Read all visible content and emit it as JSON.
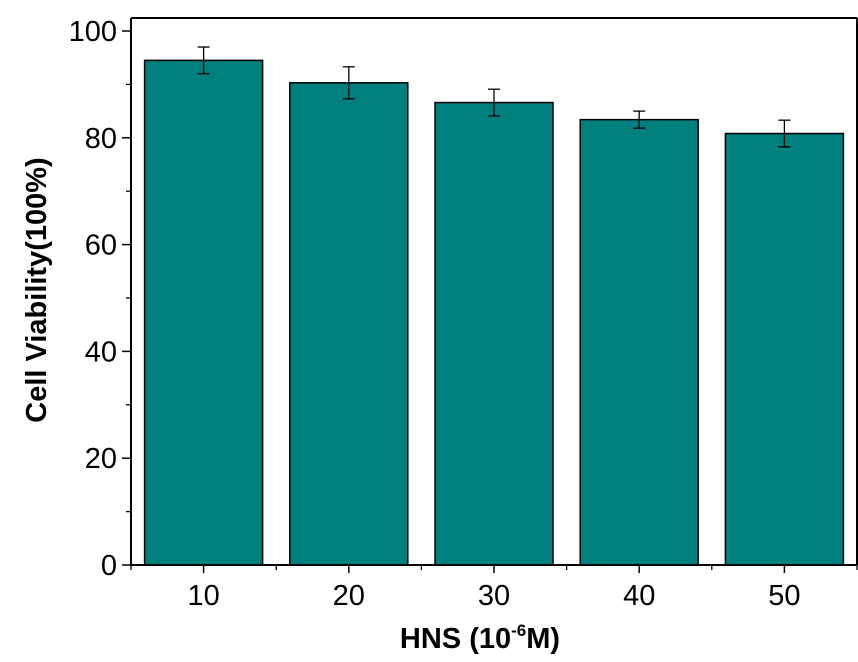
{
  "chart_data": {
    "type": "bar",
    "title": "",
    "xlabel": "HNS (10-6M)",
    "xlabel_parts": {
      "prefix": "HNS (10",
      "superscript": "-6",
      "suffix": "M)"
    },
    "ylabel": "Cell Viability(100%)",
    "categories": [
      "10",
      "20",
      "30",
      "40",
      "50"
    ],
    "values": [
      94.5,
      90.3,
      86.6,
      83.4,
      80.8
    ],
    "errors": [
      2.5,
      3.0,
      2.5,
      1.6,
      2.5
    ],
    "ylim": [
      0,
      100
    ],
    "yticks": [
      "0",
      "20",
      "40",
      "60",
      "80",
      "100"
    ],
    "grid": false,
    "bar_color": "#007f7f"
  }
}
